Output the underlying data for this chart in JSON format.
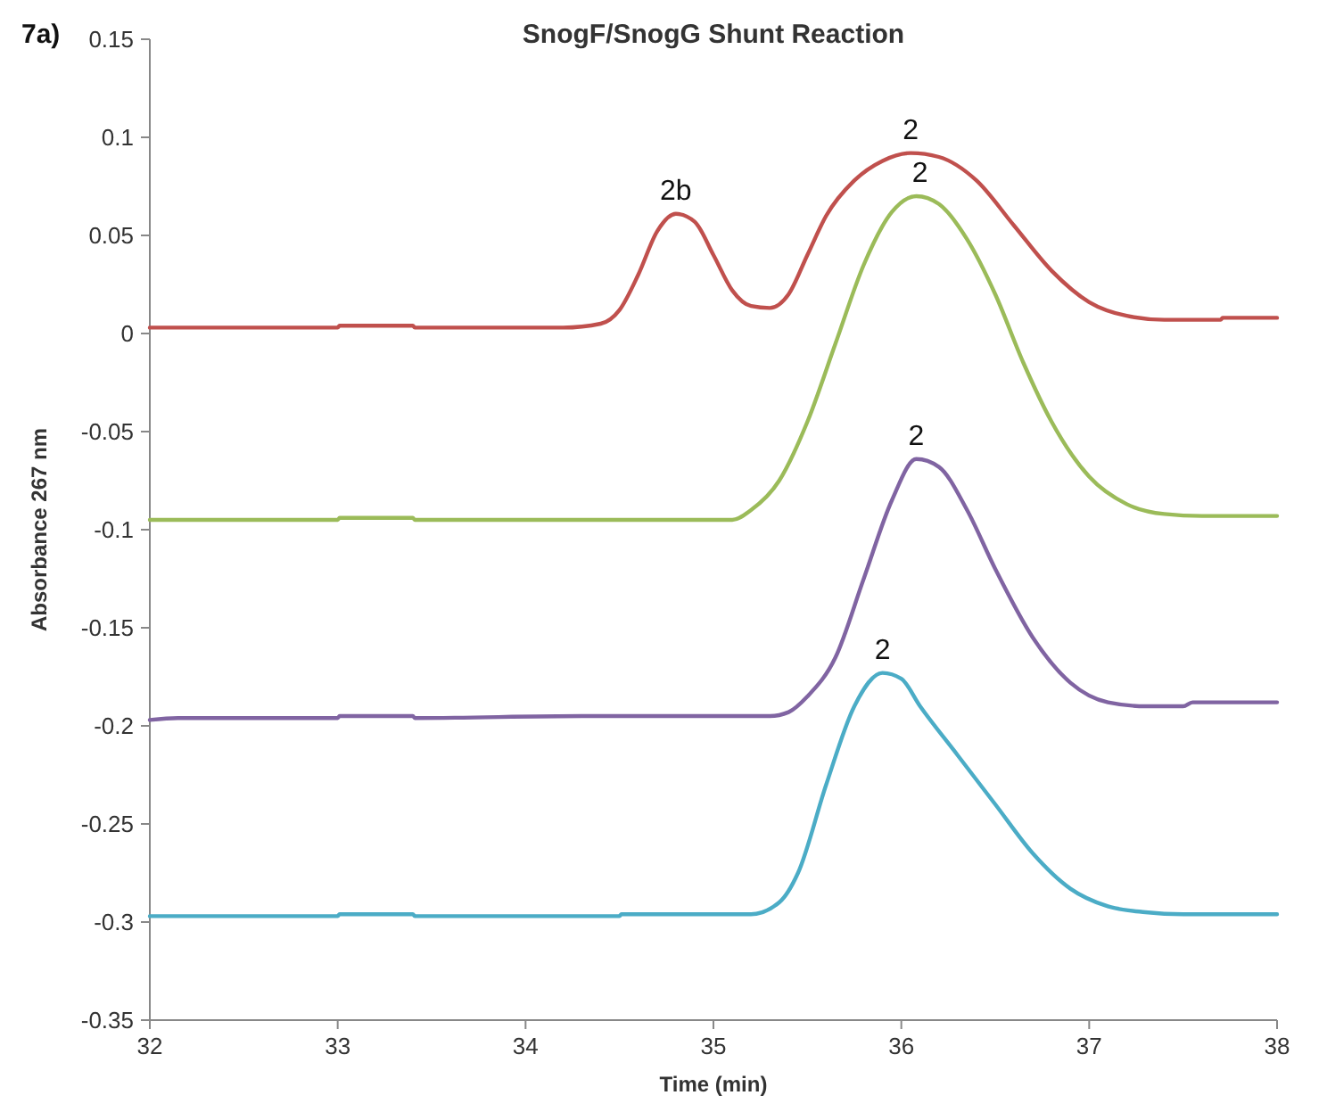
{
  "chart_data": {
    "type": "line",
    "title": "SnogF/SnogG Shunt Reaction",
    "xlabel": "Time (min)",
    "ylabel": "Absorbance 267 nm",
    "xlim": [
      32,
      38
    ],
    "xticks": [
      32,
      33,
      34,
      35,
      36,
      37,
      38
    ],
    "ylim": [
      -0.35,
      0.15
    ],
    "yticks": [
      -0.35,
      -0.3,
      -0.25,
      -0.2,
      -0.15,
      -0.1,
      -0.05,
      0,
      0.05,
      0.1,
      0.15
    ],
    "grid": false,
    "marker": "none",
    "line_style": "solid",
    "annotations": [
      "7a)",
      {
        "text": "2b",
        "x": 34.8,
        "y": 0.061
      },
      {
        "text": "2",
        "x": 36.05,
        "y": 0.092
      },
      {
        "text": "2",
        "x": 36.1,
        "y": 0.07
      },
      {
        "text": "2",
        "x": 36.08,
        "y": -0.064
      },
      {
        "text": "2",
        "x": 35.9,
        "y": -0.173
      }
    ],
    "series": [
      {
        "color": "#c0504d",
        "x": [
          32,
          33,
          33.01,
          33.4,
          33.41,
          34.2,
          34.4,
          34.5,
          34.6,
          34.7,
          34.8,
          34.9,
          35.0,
          35.1,
          35.2,
          35.3,
          35.4,
          35.5,
          35.6,
          35.75,
          35.9,
          36.05,
          36.2,
          36.4,
          36.6,
          36.8,
          37.0,
          37.2,
          37.4,
          37.7,
          37.71,
          38
        ],
        "values": [
          0.003,
          0.003,
          0.004,
          0.004,
          0.003,
          0.003,
          0.005,
          0.012,
          0.03,
          0.052,
          0.061,
          0.057,
          0.04,
          0.022,
          0.014,
          0.013,
          0.02,
          0.04,
          0.06,
          0.078,
          0.088,
          0.092,
          0.09,
          0.078,
          0.055,
          0.032,
          0.016,
          0.009,
          0.007,
          0.007,
          0.008,
          0.008
        ]
      },
      {
        "color": "#9bbb59",
        "x": [
          32,
          33,
          33.01,
          33.4,
          33.41,
          35.1,
          35.2,
          35.35,
          35.5,
          35.65,
          35.8,
          35.95,
          36.08,
          36.2,
          36.35,
          36.5,
          36.65,
          36.8,
          37.0,
          37.2,
          37.4,
          37.6,
          38
        ],
        "values": [
          -0.095,
          -0.095,
          -0.094,
          -0.094,
          -0.095,
          -0.095,
          -0.09,
          -0.075,
          -0.045,
          -0.005,
          0.035,
          0.062,
          0.07,
          0.066,
          0.048,
          0.02,
          -0.015,
          -0.045,
          -0.073,
          -0.087,
          -0.092,
          -0.093,
          -0.093
        ]
      },
      {
        "color": "#8064a2",
        "x": [
          32,
          32.15,
          33,
          33.01,
          33.4,
          33.41,
          34.3,
          35.3,
          35.4,
          35.5,
          35.65,
          35.8,
          35.95,
          36.08,
          36.2,
          36.35,
          36.5,
          36.7,
          36.9,
          37.1,
          37.3,
          37.5,
          37.55,
          38
        ],
        "values": [
          -0.197,
          -0.196,
          -0.196,
          -0.195,
          -0.195,
          -0.196,
          -0.195,
          -0.195,
          -0.193,
          -0.185,
          -0.165,
          -0.125,
          -0.085,
          -0.064,
          -0.068,
          -0.09,
          -0.12,
          -0.155,
          -0.178,
          -0.188,
          -0.19,
          -0.19,
          -0.188,
          -0.188
        ]
      },
      {
        "color": "#4bacc6",
        "x": [
          32,
          33,
          33.01,
          33.4,
          33.41,
          34.5,
          34.51,
          35.2,
          35.35,
          35.45,
          35.6,
          35.75,
          35.9,
          36.0,
          36.1,
          36.3,
          36.5,
          36.7,
          36.9,
          37.1,
          37.3,
          37.5,
          38
        ],
        "values": [
          -0.297,
          -0.297,
          -0.296,
          -0.296,
          -0.297,
          -0.297,
          -0.296,
          -0.296,
          -0.29,
          -0.275,
          -0.23,
          -0.19,
          -0.173,
          -0.176,
          -0.19,
          -0.215,
          -0.24,
          -0.265,
          -0.283,
          -0.292,
          -0.295,
          -0.296,
          -0.296
        ]
      }
    ]
  }
}
